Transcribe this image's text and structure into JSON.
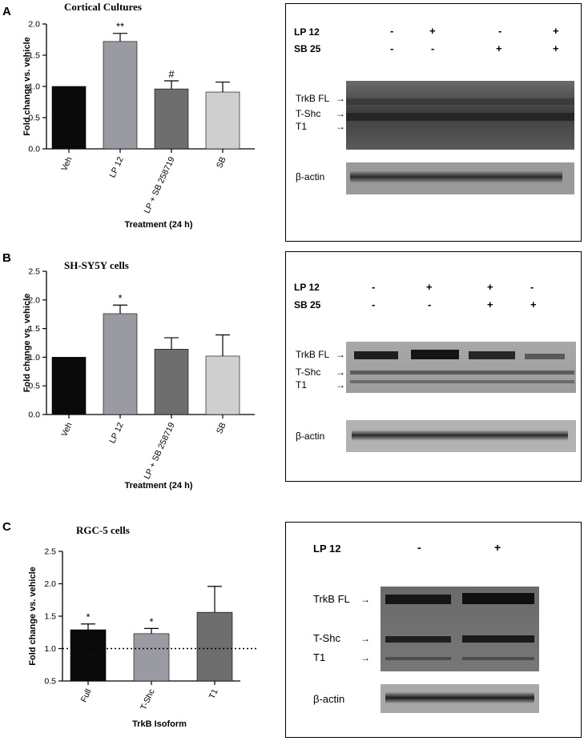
{
  "panels": [
    {
      "letter": "A",
      "chart_data": {
        "type": "bar",
        "title": "Cortical Cultures",
        "xlabel": "Treatment (24 h)",
        "ylabel": "Fold change vs. vehicle",
        "ylim": [
          0,
          2.0
        ],
        "yticks": [
          "0.0",
          "0.5",
          "1.0",
          "1.5",
          "2.0"
        ],
        "ytick_values": [
          0,
          0.5,
          1.0,
          1.5,
          2.0
        ],
        "categories": [
          "Veh",
          "LP 12",
          "LP + SB 258719",
          "SB"
        ],
        "values": [
          1.0,
          1.72,
          0.96,
          0.91
        ],
        "errors": [
          0,
          0.13,
          0.13,
          0.16
        ],
        "annotations": [
          "",
          "**",
          "#",
          ""
        ],
        "colors": [
          "#0a0a0a",
          "#9a9aa2",
          "#6e6e6e",
          "#cfcfcf"
        ],
        "baseline": null
      },
      "blot": {
        "header_rows": [
          {
            "label": "LP 12",
            "signs": [
              "-",
              "+",
              "-",
              "+"
            ]
          },
          {
            "label": "SB 25",
            "signs": [
              "-",
              "-",
              "+",
              "+"
            ]
          }
        ],
        "band_labels": [
          "TrkB FL",
          "T-Shc",
          "T1"
        ],
        "actin_label": "β-actin"
      }
    },
    {
      "letter": "B",
      "chart_data": {
        "type": "bar",
        "title": "SH-SY5Y cells",
        "xlabel": "Treatment (24 h)",
        "ylabel": "Fold change vs. vehicle",
        "ylim": [
          0,
          2.5
        ],
        "yticks": [
          "0.0",
          "0.5",
          "1.0",
          "1.5",
          "2.0",
          "2.5"
        ],
        "ytick_values": [
          0,
          0.5,
          1.0,
          1.5,
          2.0,
          2.5
        ],
        "categories": [
          "Veh",
          "LP 12",
          "LP + SB 258719",
          "SB"
        ],
        "values": [
          1.0,
          1.76,
          1.14,
          1.02
        ],
        "errors": [
          0,
          0.15,
          0.2,
          0.37
        ],
        "annotations": [
          "",
          "*",
          "",
          ""
        ],
        "colors": [
          "#0a0a0a",
          "#9a9aa2",
          "#6e6e6e",
          "#cfcfcf"
        ],
        "baseline": null
      },
      "blot": {
        "header_rows": [
          {
            "label": "LP 12",
            "signs": [
              "-",
              "+",
              "+",
              "-"
            ]
          },
          {
            "label": "SB 25",
            "signs": [
              "-",
              "-",
              "+",
              "+"
            ]
          }
        ],
        "band_labels": [
          "TrkB FL",
          "T-Shc",
          "T1"
        ],
        "actin_label": "β-actin"
      }
    },
    {
      "letter": "C",
      "chart_data": {
        "type": "bar",
        "title": "RGC-5 cells",
        "xlabel": "TrkB Isoform",
        "ylabel": "Fold change vs. vehicle",
        "ylim": [
          0.5,
          2.5
        ],
        "yticks": [
          "0.5",
          "1.0",
          "1.5",
          "2.0",
          "2.5"
        ],
        "ytick_values": [
          0.5,
          1.0,
          1.5,
          2.0,
          2.5
        ],
        "categories": [
          "Full",
          "T-Shc",
          "T1"
        ],
        "values": [
          1.29,
          1.23,
          1.56
        ],
        "errors": [
          0.09,
          0.08,
          0.4
        ],
        "annotations": [
          "*",
          "*",
          ""
        ],
        "colors": [
          "#0a0a0a",
          "#9a9aa2",
          "#6e6e6e"
        ],
        "baseline": 1.0
      },
      "blot": {
        "header_rows": [
          {
            "label": "LP 12",
            "signs": [
              "-",
              "+"
            ]
          }
        ],
        "band_labels": [
          "TrkB FL",
          "T-Shc",
          "T1"
        ],
        "actin_label": "β-actin"
      }
    }
  ]
}
